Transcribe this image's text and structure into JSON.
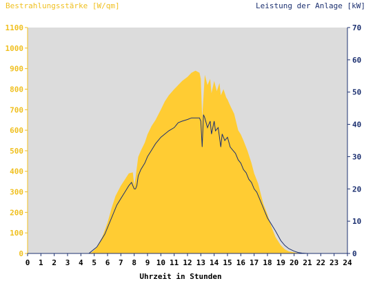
{
  "colors": {
    "plot_bg": "#dcdcdc",
    "irradiance": "#ffcc33",
    "irradiance_text": "#f0c020",
    "power": "#1c3070",
    "axis_text": "#000000"
  },
  "labels": {
    "left_title": "Bestrahlungsstärke [W/qm]",
    "right_title": "Leistung der Anlage [kW]",
    "x_title": "Uhrzeit in Stunden"
  },
  "chart_data": {
    "type": "area",
    "x_unit": "hours",
    "xlim": [
      0,
      24
    ],
    "y_left_lim": [
      0,
      1100
    ],
    "y_right_lim": [
      0,
      70
    ],
    "x_ticks": [
      0,
      1,
      2,
      3,
      4,
      5,
      6,
      7,
      8,
      9,
      10,
      11,
      12,
      13,
      14,
      15,
      16,
      17,
      18,
      19,
      20,
      21,
      22,
      23,
      24
    ],
    "y_left_ticks": [
      0,
      100,
      200,
      300,
      400,
      500,
      600,
      700,
      800,
      900,
      1000,
      1100
    ],
    "y_right_ticks": [
      0,
      10,
      20,
      30,
      40,
      50,
      60,
      70
    ],
    "series": [
      {
        "name": "Bestrahlungsstärke [W/qm]",
        "axis": "left",
        "style": "area",
        "x": [
          0,
          4.5,
          4.8,
          5.0,
          5.3,
          5.6,
          6.0,
          6.3,
          6.6,
          7.0,
          7.3,
          7.6,
          7.9,
          8.0,
          8.1,
          8.3,
          8.5,
          8.8,
          9.0,
          9.3,
          9.6,
          10.0,
          10.3,
          10.6,
          11.0,
          11.3,
          11.6,
          12.0,
          12.3,
          12.6,
          12.9,
          13.0,
          13.1,
          13.3,
          13.5,
          13.7,
          13.8,
          14.0,
          14.2,
          14.4,
          14.5,
          14.7,
          14.9,
          15.0,
          15.2,
          15.5,
          15.8,
          16.0,
          16.2,
          16.5,
          16.8,
          17.0,
          17.3,
          17.5,
          17.7,
          18.0,
          18.3,
          18.6,
          19.0,
          19.3,
          19.6,
          20.0,
          20.3,
          20.6,
          21.0,
          24
        ],
        "y": [
          0,
          0,
          5,
          15,
          40,
          80,
          150,
          220,
          280,
          330,
          360,
          390,
          395,
          330,
          370,
          470,
          500,
          540,
          580,
          620,
          650,
          700,
          740,
          770,
          800,
          820,
          840,
          860,
          880,
          890,
          880,
          850,
          660,
          870,
          820,
          850,
          780,
          840,
          790,
          830,
          770,
          800,
          760,
          750,
          720,
          680,
          600,
          580,
          550,
          500,
          440,
          390,
          340,
          290,
          240,
          190,
          130,
          80,
          40,
          20,
          10,
          5,
          2,
          0,
          0,
          0
        ]
      },
      {
        "name": "Leistung der Anlage [kW]",
        "axis": "right",
        "style": "line",
        "x": [
          0,
          4.6,
          4.9,
          5.2,
          5.5,
          5.8,
          6.1,
          6.4,
          6.7,
          7.0,
          7.3,
          7.6,
          7.8,
          7.9,
          8.0,
          8.1,
          8.2,
          8.3,
          8.5,
          8.8,
          9.0,
          9.3,
          9.6,
          10.0,
          10.3,
          10.6,
          11.0,
          11.3,
          11.6,
          12.0,
          12.3,
          12.6,
          12.9,
          13.0,
          13.1,
          13.2,
          13.3,
          13.5,
          13.7,
          13.8,
          14.0,
          14.1,
          14.3,
          14.5,
          14.6,
          14.8,
          15.0,
          15.2,
          15.4,
          15.6,
          15.8,
          16.0,
          16.2,
          16.4,
          16.6,
          16.8,
          17.0,
          17.2,
          17.4,
          17.6,
          17.8,
          18.0,
          18.3,
          18.6,
          19.0,
          19.3,
          19.6,
          20.0,
          20.3,
          20.6,
          21.0,
          24
        ],
        "y": [
          0,
          0,
          1,
          2,
          4,
          6,
          9,
          12,
          15,
          17,
          19,
          21,
          22,
          21,
          20,
          20,
          21,
          24,
          26,
          28,
          30,
          32,
          34,
          36,
          37,
          38,
          39,
          40.5,
          41,
          41.5,
          42,
          42,
          42,
          41,
          33,
          43,
          42,
          39,
          41,
          37,
          41,
          38,
          39,
          33,
          37,
          35,
          36,
          33,
          32,
          31,
          29,
          28,
          26,
          25,
          23,
          22,
          20,
          19,
          17,
          15,
          13,
          11,
          9,
          7,
          4,
          2.5,
          1.5,
          0.7,
          0.3,
          0.1,
          0,
          0
        ]
      }
    ]
  }
}
